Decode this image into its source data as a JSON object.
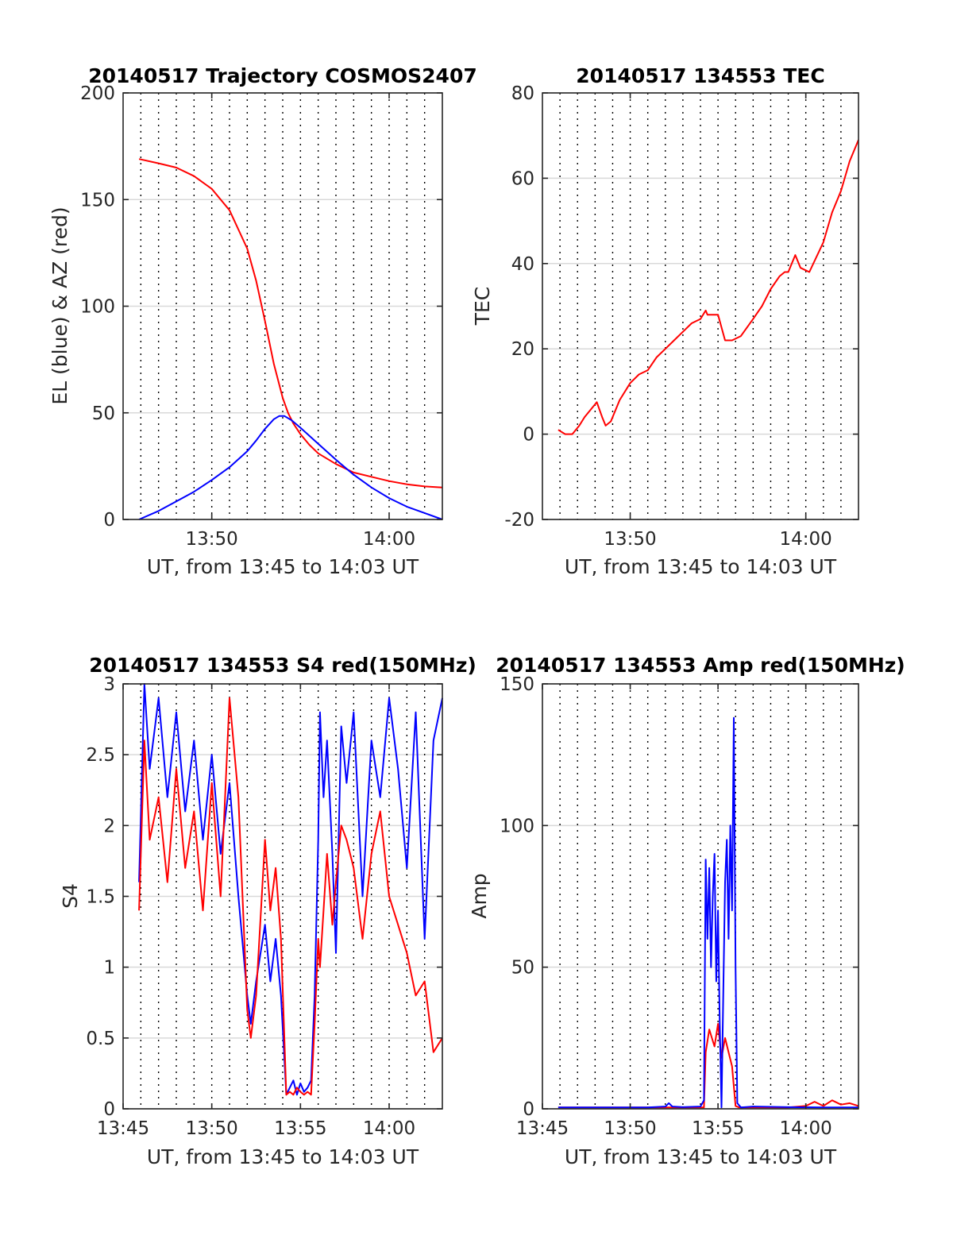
{
  "figure": {
    "colors": {
      "el": "#0000ff",
      "az": "#ff0000",
      "grid": "#d9d9d9",
      "axis": "#262626"
    }
  },
  "chart_data": [
    {
      "id": "traj",
      "type": "line",
      "title": "20140517 Trajectory COSMOS2407",
      "xlabel": "UT, from 13:45 to 14:03 UT",
      "ylabel": "EL (blue) & AZ (red)",
      "x_unit": "minutes after 13:45 UT",
      "xlim": [
        0,
        18
      ],
      "ylim": [
        0,
        200
      ],
      "x_ticks": [
        5,
        15
      ],
      "x_tick_labels": [
        "13:50",
        "14:00"
      ],
      "y_ticks": [
        0,
        50,
        100,
        150,
        200
      ],
      "y_tick_labels": [
        "0",
        "50",
        "100",
        "150",
        "200"
      ],
      "y_grid": true,
      "dotted_x_grid": true,
      "series": [
        {
          "color": "#ff0000",
          "x": [
            0.9,
            2,
            3,
            4,
            5,
            6,
            7,
            7.5,
            8,
            8.5,
            9,
            9.3,
            9.6,
            10,
            10.5,
            11,
            12,
            13,
            14,
            15,
            16,
            17,
            18
          ],
          "y": [
            169,
            167,
            165,
            161,
            155,
            145,
            127,
            112,
            93,
            73,
            57,
            50,
            45,
            40,
            35,
            31,
            26,
            22,
            20,
            18,
            16.5,
            15.5,
            15
          ]
        },
        {
          "color": "#0000ff",
          "x": [
            0.9,
            2,
            3,
            4,
            5,
            6,
            7,
            7.5,
            8,
            8.5,
            8.8,
            9.1,
            9.5,
            10,
            11,
            12,
            13,
            14,
            15,
            16,
            17,
            18
          ],
          "y": [
            0,
            4,
            8.5,
            13,
            18.5,
            24.5,
            32,
            37,
            42.5,
            47,
            48.5,
            48.5,
            46.5,
            43,
            35.5,
            28,
            21,
            15,
            10,
            6,
            3,
            0
          ]
        }
      ]
    },
    {
      "id": "tec",
      "type": "line",
      "title": "20140517 134553 TEC",
      "xlabel": "UT, from 13:45 to 14:03 UT",
      "ylabel": "TEC",
      "x_unit": "minutes after 13:45 UT",
      "xlim": [
        0,
        18
      ],
      "ylim": [
        -20,
        80
      ],
      "x_ticks": [
        5,
        15
      ],
      "x_tick_labels": [
        "13:50",
        "14:00"
      ],
      "y_ticks": [
        -20,
        0,
        20,
        40,
        60,
        80
      ],
      "y_tick_labels": [
        "-20",
        "0",
        "20",
        "40",
        "60",
        "80"
      ],
      "y_grid": true,
      "dotted_x_grid": true,
      "series": [
        {
          "color": "#ff0000",
          "x": [
            0.9,
            1.3,
            1.7,
            2.1,
            2.4,
            2.8,
            3.1,
            3.4,
            3.6,
            3.9,
            4.4,
            5,
            5.5,
            6,
            6.5,
            7,
            7.5,
            8,
            8.5,
            9,
            9.3,
            9.4,
            9.6,
            10,
            10.4,
            10.8,
            11.3,
            12,
            12.5,
            13,
            13.5,
            13.8,
            14,
            14.2,
            14.4,
            14.7,
            15.2,
            16,
            16.5,
            17,
            17.5,
            18
          ],
          "y": [
            1,
            0,
            0,
            2,
            4,
            6,
            7.5,
            4,
            2,
            3,
            8,
            12,
            14,
            15,
            18,
            20,
            22,
            24,
            26,
            27,
            29,
            28,
            28,
            28,
            22,
            22,
            23,
            27,
            30,
            34,
            37,
            38,
            38,
            40,
            42,
            39,
            38,
            45,
            52,
            57,
            64,
            69
          ]
        }
      ]
    },
    {
      "id": "s4",
      "type": "line",
      "title": "20140517 134553 S4 red(150MHz)",
      "xlabel": "UT, from 13:45 to 14:03 UT",
      "ylabel": "S4",
      "x_unit": "minutes after 13:45 UT",
      "xlim": [
        0,
        18
      ],
      "ylim": [
        0,
        3
      ],
      "x_ticks": [
        0,
        5,
        10,
        15
      ],
      "x_tick_labels": [
        "13:45",
        "13:50",
        "13:55",
        "14:00"
      ],
      "y_ticks": [
        0,
        0.5,
        1,
        1.5,
        2,
        2.5,
        3
      ],
      "y_tick_labels": [
        "0",
        "0.5",
        "1",
        "1.5",
        "2",
        "2.5",
        "3"
      ],
      "y_grid": true,
      "dotted_x_grid": true,
      "series": [
        {
          "color": "#0000ff",
          "x": [
            0.9,
            1.2,
            1.5,
            2,
            2.5,
            3,
            3.5,
            4,
            4.5,
            5,
            5.5,
            6,
            6.5,
            7,
            7.2,
            7.5,
            8,
            8.3,
            8.6,
            8.9,
            9.2,
            9.4,
            9.6,
            9.8,
            10,
            10.2,
            10.4,
            10.6,
            10.8,
            11,
            11.1,
            11.3,
            11.5,
            11.8,
            12,
            12.3,
            12.6,
            13,
            13.5,
            14,
            14.5,
            15,
            15.5,
            16,
            16.5,
            17,
            17.5,
            18
          ],
          "y": [
            1.6,
            3,
            2.4,
            2.9,
            2.2,
            2.8,
            2.1,
            2.6,
            1.9,
            2.5,
            1.8,
            2.3,
            1.5,
            0.8,
            0.6,
            0.9,
            1.3,
            0.9,
            1.2,
            0.8,
            0.1,
            0.15,
            0.2,
            0.1,
            0.18,
            0.12,
            0.15,
            0.2,
            0.8,
            1.9,
            2.8,
            2.2,
            2.6,
            1.8,
            1.1,
            2.7,
            2.3,
            2.8,
            1.5,
            2.6,
            2.2,
            2.9,
            2.4,
            1.7,
            2.8,
            1.2,
            2.6,
            2.9
          ]
        },
        {
          "color": "#ff0000",
          "x": [
            0.9,
            1.2,
            1.5,
            2,
            2.5,
            3,
            3.5,
            4,
            4.5,
            5,
            5.5,
            6,
            6.5,
            7,
            7.2,
            7.5,
            8,
            8.3,
            8.6,
            8.9,
            9.2,
            9.4,
            9.6,
            9.8,
            10,
            10.2,
            10.4,
            10.6,
            10.8,
            11,
            11.1,
            11.3,
            11.5,
            11.8,
            12,
            12.3,
            12.6,
            13,
            13.5,
            14,
            14.5,
            15,
            15.5,
            16,
            16.5,
            17,
            17.5,
            18
          ],
          "y": [
            1.4,
            2.6,
            1.9,
            2.2,
            1.6,
            2.4,
            1.7,
            2.1,
            1.4,
            2.3,
            1.5,
            2.9,
            2.2,
            0.7,
            0.5,
            0.8,
            1.9,
            1.4,
            1.7,
            1.2,
            0.1,
            0.12,
            0.1,
            0.15,
            0.12,
            0.1,
            0.12,
            0.1,
            0.6,
            1.2,
            1.0,
            1.4,
            1.8,
            1.3,
            1.6,
            2.0,
            1.9,
            1.7,
            1.2,
            1.8,
            2.1,
            1.5,
            1.3,
            1.1,
            0.8,
            0.9,
            0.4,
            0.5
          ]
        }
      ]
    },
    {
      "id": "amp",
      "type": "line",
      "title": "20140517 134553 Amp red(150MHz)",
      "xlabel": "UT, from 13:45 to 14:03 UT",
      "ylabel": "Amp",
      "x_unit": "minutes after 13:45 UT",
      "xlim": [
        0,
        18
      ],
      "ylim": [
        0,
        150
      ],
      "x_ticks": [
        0,
        5,
        10,
        15
      ],
      "x_tick_labels": [
        "13:45",
        "13:50",
        "13:55",
        "14:00"
      ],
      "y_ticks": [
        0,
        50,
        100,
        150
      ],
      "y_tick_labels": [
        "0",
        "50",
        "100",
        "150"
      ],
      "y_grid": true,
      "dotted_x_grid": true,
      "series": [
        {
          "color": "#ff0000",
          "x": [
            0.9,
            2,
            4,
            6,
            8,
            9.2,
            9.3,
            9.5,
            9.8,
            10,
            10.2,
            10.4,
            10.6,
            10.8,
            11,
            11.2,
            12,
            14,
            15,
            15.5,
            16,
            16.5,
            17,
            17.5,
            18
          ],
          "y": [
            0.5,
            0.5,
            0.5,
            0.5,
            0.5,
            0.5,
            20,
            28,
            22,
            30,
            18,
            25,
            20,
            15,
            1,
            0.5,
            0.5,
            0.5,
            1,
            2.5,
            1,
            3,
            1.5,
            2,
            1
          ]
        },
        {
          "color": "#0000ff",
          "x": [
            0.9,
            2,
            4,
            6,
            7,
            7.2,
            7.4,
            8,
            9,
            9.2,
            9.3,
            9.4,
            9.5,
            9.6,
            9.7,
            9.8,
            9.9,
            10,
            10.1,
            10.2,
            10.3,
            10.4,
            10.5,
            10.6,
            10.7,
            10.8,
            10.9,
            11,
            11.1,
            11.3,
            12,
            14,
            16,
            18
          ],
          "y": [
            0.5,
            0.5,
            0.5,
            0.5,
            0.8,
            2,
            0.8,
            0.6,
            0.8,
            3,
            88,
            60,
            85,
            50,
            75,
            90,
            45,
            70,
            30,
            0.5,
            40,
            80,
            95,
            60,
            100,
            70,
            138,
            50,
            2,
            0.5,
            0.8,
            0.6,
            0.5,
            0.5
          ]
        }
      ]
    }
  ]
}
